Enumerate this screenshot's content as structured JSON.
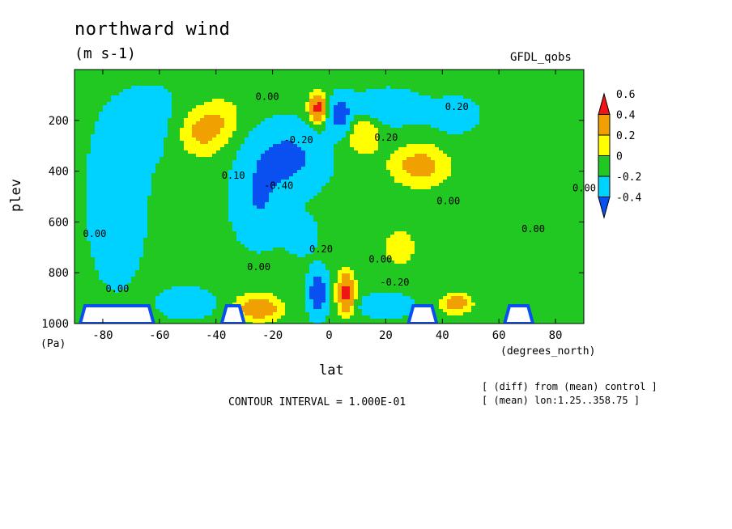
{
  "figure": {
    "title": "northward wind",
    "units": "(m s-1)",
    "dataset": "GFDL_qobs",
    "ylabel": "plev",
    "yunits": "(Pa)",
    "xlabel": "lat",
    "xunits": "(degrees_north)",
    "contour_interval": "CONTOUR INTERVAL = 1.000E-01",
    "note1": "[ (diff) from (mean) control ]",
    "note2": "[ (mean) lon:1.25..358.75 ]"
  },
  "chart_data": {
    "type": "heatmap",
    "title": "northward wind",
    "xlabel": "lat",
    "ylabel": "plev",
    "xlim": [
      -90,
      90
    ],
    "ylim": [
      1000,
      0
    ],
    "x_ticks": [
      -80,
      -60,
      -40,
      -20,
      0,
      20,
      40,
      60,
      80
    ],
    "y_ticks": [
      200,
      400,
      600,
      800,
      1000
    ],
    "colorbar": {
      "levels": [
        -0.4,
        -0.2,
        0,
        0.2,
        0.4,
        0.6
      ],
      "labels": [
        "-0.4",
        "-0.2",
        "0",
        "0.2",
        "0.4",
        "0.6"
      ],
      "colors": [
        "#0a50f0",
        "#00d2ff",
        "#22c822",
        "#ffff00",
        "#f0a000",
        "#f01414"
      ]
    },
    "contour_labels": [
      {
        "text": "0.00",
        "lat": -26,
        "plev": 120
      },
      {
        "text": "0.20",
        "lat": 41,
        "plev": 160
      },
      {
        "text": "-0.20",
        "lat": -16,
        "plev": 290
      },
      {
        "text": "0.20",
        "lat": 16,
        "plev": 280
      },
      {
        "text": "0.10",
        "lat": -38,
        "plev": 430
      },
      {
        "text": "-0.40",
        "lat": -23,
        "plev": 470
      },
      {
        "text": "0.00",
        "lat": 38,
        "plev": 530
      },
      {
        "text": "0.00",
        "lat": 86,
        "plev": 480
      },
      {
        "text": "0.00",
        "lat": -87,
        "plev": 660
      },
      {
        "text": "0.00",
        "lat": 68,
        "plev": 640
      },
      {
        "text": "0.20",
        "lat": -7,
        "plev": 720
      },
      {
        "text": "0.00",
        "lat": 14,
        "plev": 760
      },
      {
        "text": "0.00",
        "lat": -29,
        "plev": 790
      },
      {
        "text": "-0.20",
        "lat": 18,
        "plev": 850
      },
      {
        "text": "0.00",
        "lat": -79,
        "plev": 875
      }
    ]
  }
}
